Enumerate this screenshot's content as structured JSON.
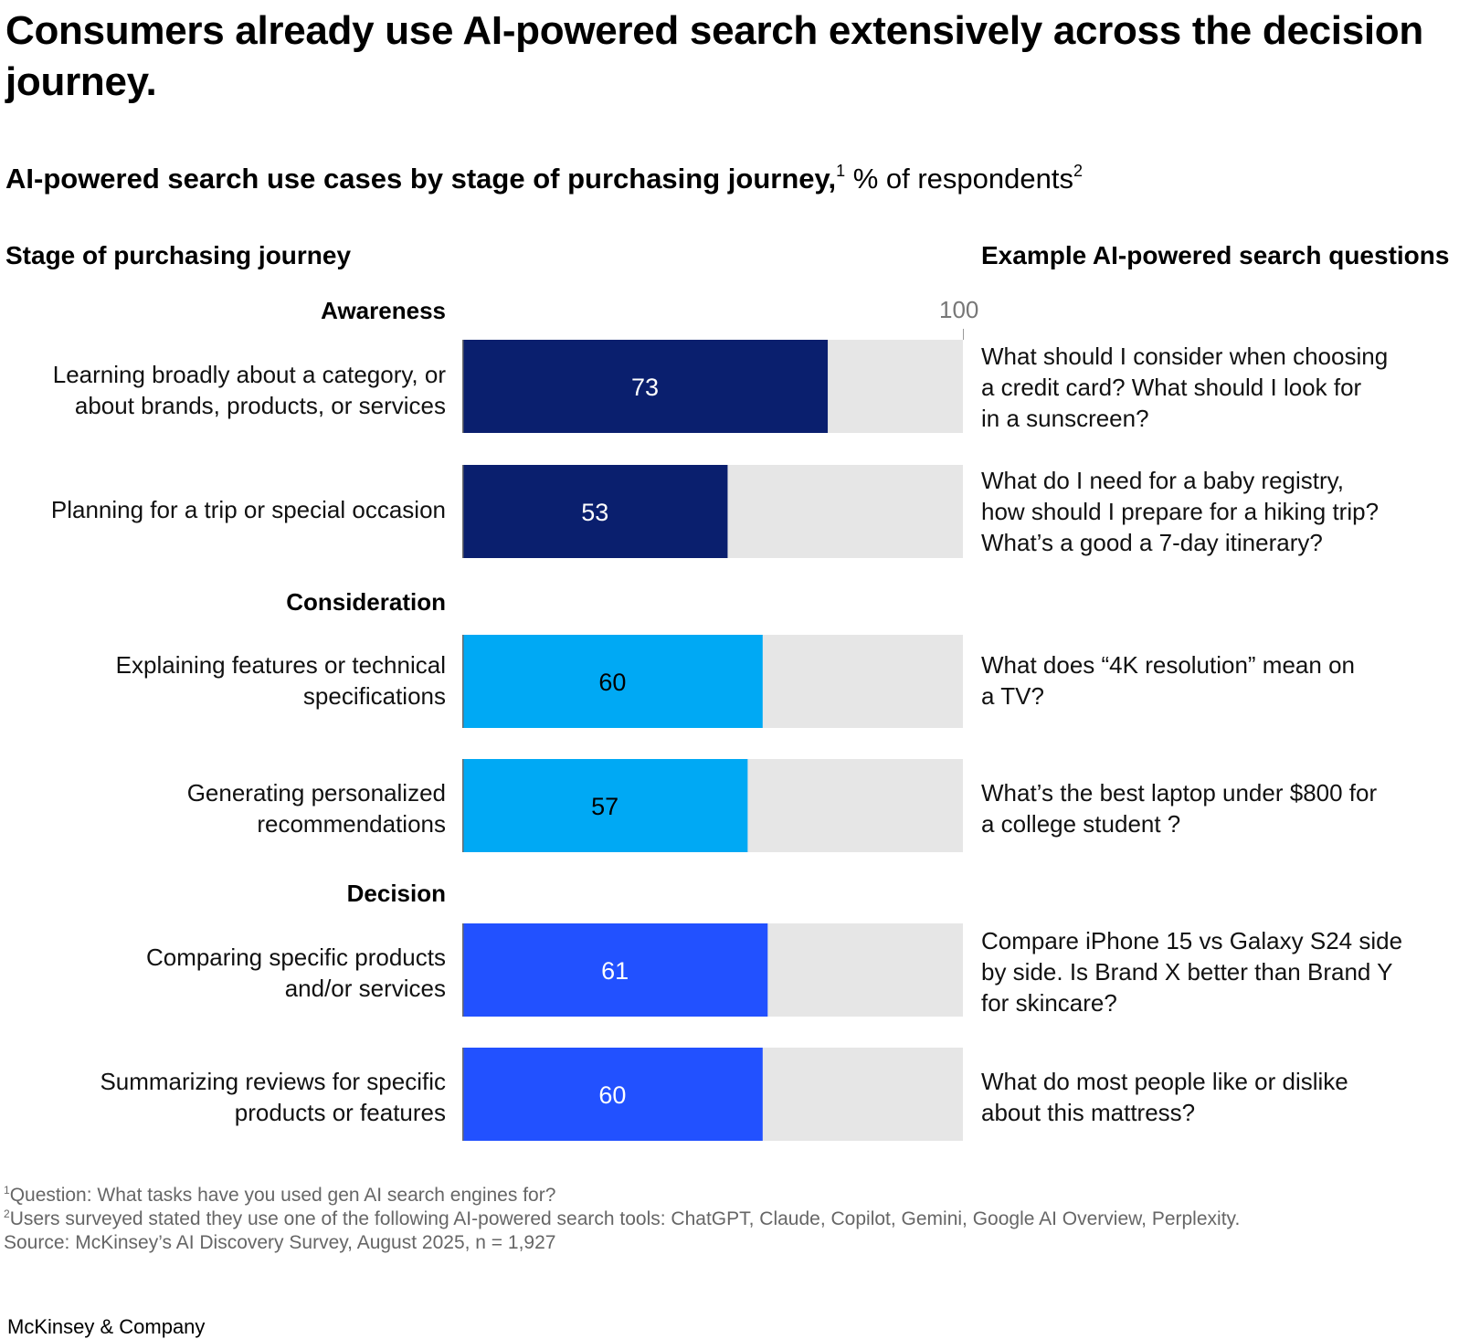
{
  "title": "Consumers already use AI-powered search extensively across the decision journey.",
  "subtitle": {
    "bold": "AI-powered search use cases by stage of purchasing journey,",
    "sup1": "1",
    "normal": " % of respondents",
    "sup2": "2"
  },
  "left_header": "Stage of purchasing journey",
  "right_header": "Example AI-powered search questions",
  "scale_max_label": "100",
  "stages": [
    "Awareness",
    "Consideration",
    "Decision"
  ],
  "chart_data": {
    "type": "bar",
    "orientation": "horizontal",
    "xlim": [
      0,
      100
    ],
    "categories": [
      "Learning broadly about a category, or about brands, products, or services",
      "Planning for a trip or special occasion",
      "Explaining features or technical specifications",
      "Generating personalized recommendations",
      "Comparing specific products and/or services",
      "Summarizing reviews for specific products or features"
    ],
    "values": [
      73,
      53,
      60,
      57,
      61,
      60
    ],
    "groups": [
      "Awareness",
      "Awareness",
      "Consideration",
      "Consideration",
      "Decision",
      "Decision"
    ]
  },
  "rows": [
    {
      "label_lines": [
        "Learning broadly about a category, or",
        "about brands, products, or services"
      ],
      "value": "73",
      "example_lines": [
        "What should I consider when choosing",
        "a credit card? What should I look for",
        "in a sunscreen?"
      ]
    },
    {
      "label_lines": [
        "Planning for a trip or special occasion"
      ],
      "value": "53",
      "example_lines": [
        "What do I need for a baby registry,",
        "how should I prepare for a hiking trip?",
        "What’s a good a 7-day itinerary?"
      ]
    },
    {
      "label_lines": [
        "Explaining features or technical",
        "specifications"
      ],
      "value": "60",
      "example_lines": [
        "What does “4K resolution” mean on",
        "a TV?"
      ]
    },
    {
      "label_lines": [
        "Generating personalized",
        "recommendations"
      ],
      "value": "57",
      "example_lines": [
        "What’s the best laptop under $800 for",
        "a college student ?"
      ]
    },
    {
      "label_lines": [
        "Comparing specific products",
        "and/or services"
      ],
      "value": "61",
      "example_lines": [
        "Compare iPhone 15 vs Galaxy S24 side",
        "by side. Is Brand X better than Brand Y",
        "for skincare?"
      ]
    },
    {
      "label_lines": [
        "Summarizing reviews for specific",
        "products or features"
      ],
      "value": "60",
      "example_lines": [
        "What do most people like or dislike",
        "about this mattress?"
      ]
    }
  ],
  "colors": {
    "awareness": "#0a1f6e",
    "consideration": "#00a9f4",
    "decision": "#2251ff",
    "track": "#e6e6e6",
    "label_on_dark": "#ffffff",
    "label_on_light": "#000000"
  },
  "footnotes": [
    {
      "marker": "1",
      "text": "Question: What tasks have you used gen AI search engines for?"
    },
    {
      "marker": "2",
      "text": "Users surveyed stated they use one of the following AI-powered search tools: ChatGPT, Claude, Copilot, Gemini, Google AI Overview, Perplexity."
    },
    {
      "marker": "",
      "text": " Source: McKinsey’s AI Discovery Survey, August 2025, n = 1,927"
    }
  ],
  "brand": "McKinsey & Company"
}
